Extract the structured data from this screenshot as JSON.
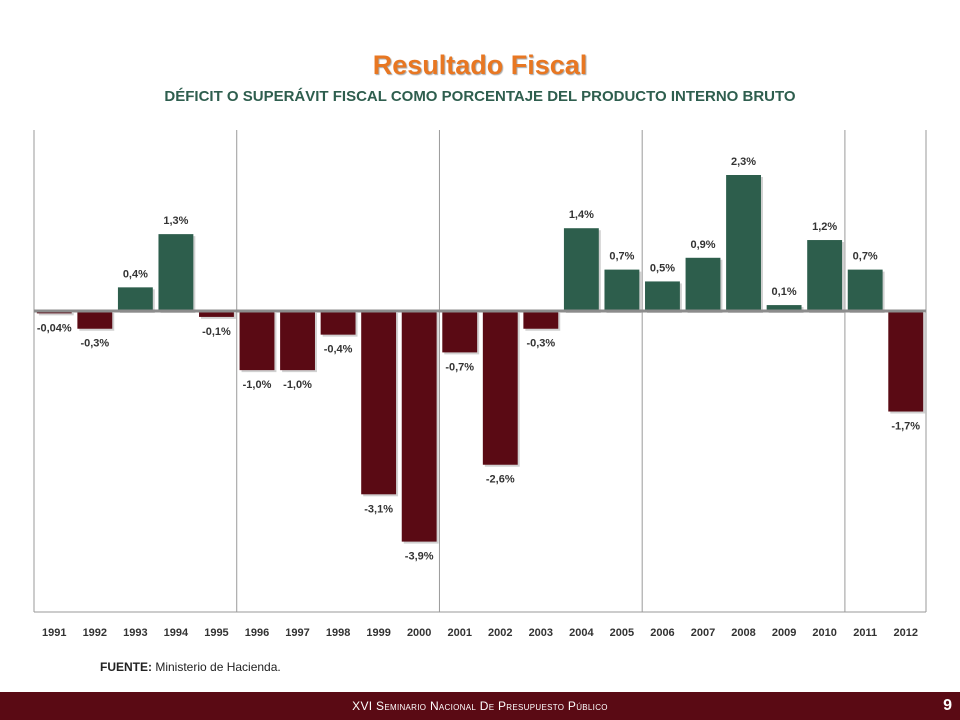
{
  "slide": {
    "title": "Resultado Fiscal",
    "subtitle": "DÉFICIT O SUPERÁVIT FISCAL COMO PORCENTAJE DEL PRODUCTO INTERNO BRUTO",
    "source_label": "FUENTE:",
    "source_text": " Ministerio de Hacienda.",
    "footer": "XVI Seminario Nacional De Presupuesto Público",
    "page_number": "9"
  },
  "colors": {
    "positive": "#2d5e4c",
    "negative": "#5a0a14",
    "title": "#e87722",
    "subtitle": "#2e5e4e",
    "footer_bg": "#5a0a14"
  },
  "chart_data": {
    "type": "bar",
    "title": "DÉFICIT O SUPERÁVIT FISCAL COMO PORCENTAJE DEL PRODUCTO INTERNO BRUTO",
    "xlabel": "",
    "ylabel": "",
    "ylim": [
      -4.7,
      2.9
    ],
    "grid": false,
    "categories": [
      "1991",
      "1992",
      "1993",
      "1994",
      "1995",
      "1996",
      "1997",
      "1998",
      "1999",
      "2000",
      "2001",
      "2002",
      "2003",
      "2004",
      "2005",
      "2006",
      "2007",
      "2008",
      "2009",
      "2010",
      "2011",
      "2012"
    ],
    "values": [
      -0.04,
      -0.3,
      0.4,
      1.3,
      -0.1,
      -1.0,
      -1.0,
      -0.4,
      -3.1,
      -3.9,
      -0.7,
      -2.6,
      -0.3,
      1.4,
      0.7,
      0.5,
      0.9,
      2.3,
      0.1,
      1.2,
      0.7,
      -1.7
    ],
    "labels": [
      "-0,04%",
      "-0,3%",
      "0,4%",
      "1,3%",
      "-0,1%",
      "-1,0%",
      "-1,0%",
      "-0,4%",
      "-3,1%",
      "-3,9%",
      "-0,7%",
      "-2,6%",
      "-0,3%",
      "1,4%",
      "0,7%",
      "0,5%",
      "0,9%",
      "2,3%",
      "0,1%",
      "1,2%",
      "0,7%",
      "-1,7%"
    ],
    "separators_after": [
      "1995",
      "2000",
      "2005",
      "2010"
    ]
  }
}
